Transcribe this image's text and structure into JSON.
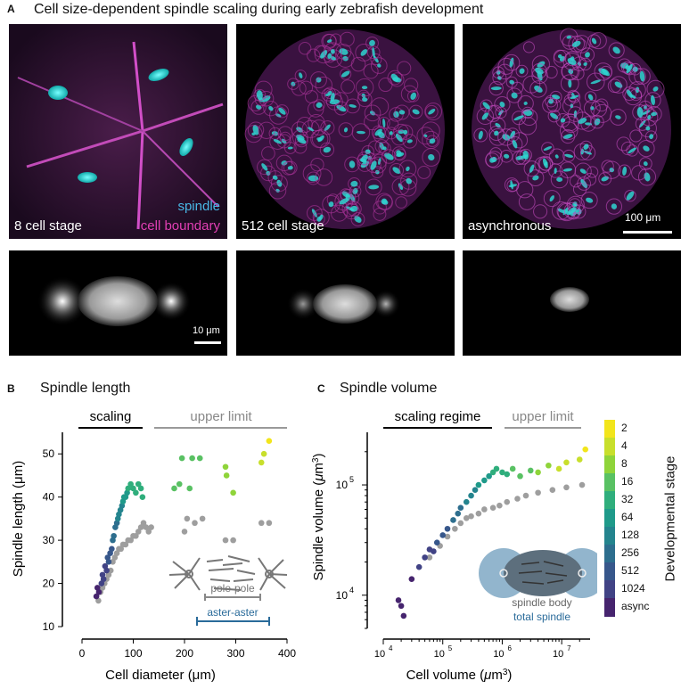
{
  "panelA": {
    "letter": "A",
    "title": "Cell size-dependent spindle scaling during early zebrafish development",
    "stage_labels": [
      "8 cell stage",
      "512 cell stage",
      "asynchronous"
    ],
    "legend_spindle": "spindle",
    "legend_boundary": "cell boundary",
    "scalebar_top": "100 μm",
    "scalebar_bottom": "10 μm"
  },
  "panelB": {
    "letter": "B",
    "title": "Spindle length",
    "regime_scaling": "scaling",
    "regime_upper": "upper limit",
    "inset_pole": "pole-pole",
    "inset_aster": "aster-aster"
  },
  "panelC": {
    "letter": "C",
    "title": "Spindle volume",
    "regime_scaling": "scaling regime",
    "regime_upper": "upper limit",
    "inset_body": "spindle body",
    "inset_total": "total spindle"
  },
  "colorbar": {
    "title": "Developmental stage",
    "labels": [
      "2",
      "4",
      "8",
      "16",
      "32",
      "64",
      "128",
      "256",
      "512",
      "1024",
      "async"
    ],
    "colors": [
      "#f2e51c",
      "#c8df2c",
      "#8fd43a",
      "#59c163",
      "#2fae7c",
      "#1f9a8a",
      "#24848e",
      "#2d6e8e",
      "#37578b",
      "#414385",
      "#46246e"
    ]
  },
  "chart_data": [
    {
      "type": "scatter",
      "title": "Spindle length",
      "xlabel": "Cell diameter (μm)",
      "ylabel": "Spindle length (μm)",
      "xlim": [
        0,
        400
      ],
      "ylim": [
        10,
        55
      ],
      "xticks": [
        0,
        100,
        200,
        300,
        400
      ],
      "yticks": [
        10,
        20,
        30,
        40,
        50
      ],
      "series": [
        {
          "name": "aster-aster",
          "color": "stage",
          "points": [
            [
              28,
              17,
              10
            ],
            [
              30,
              19,
              10
            ],
            [
              33,
              18,
              10
            ],
            [
              38,
              20,
              9
            ],
            [
              40,
              22,
              9
            ],
            [
              42,
              21,
              9
            ],
            [
              45,
              24,
              9
            ],
            [
              48,
              23,
              9
            ],
            [
              50,
              26,
              8
            ],
            [
              52,
              25,
              8
            ],
            [
              55,
              27,
              8
            ],
            [
              58,
              28,
              8
            ],
            [
              60,
              30,
              7
            ],
            [
              62,
              31,
              7
            ],
            [
              65,
              33,
              7
            ],
            [
              68,
              34,
              7
            ],
            [
              70,
              35,
              6
            ],
            [
              72,
              36,
              6
            ],
            [
              75,
              37,
              6
            ],
            [
              78,
              38,
              6
            ],
            [
              80,
              39,
              5
            ],
            [
              82,
              40,
              5
            ],
            [
              85,
              40,
              5
            ],
            [
              88,
              41,
              5
            ],
            [
              90,
              42,
              4
            ],
            [
              95,
              43,
              4
            ],
            [
              100,
              42,
              4
            ],
            [
              105,
              41,
              4
            ],
            [
              110,
              43,
              4
            ],
            [
              115,
              42,
              4
            ],
            [
              118,
              40,
              4
            ],
            [
              180,
              42,
              3
            ],
            [
              190,
              43,
              3
            ],
            [
              195,
              49,
              3
            ],
            [
              210,
              42,
              3
            ],
            [
              215,
              49,
              3
            ],
            [
              230,
              49,
              3
            ],
            [
              280,
              47,
              2
            ],
            [
              282,
              45,
              2
            ],
            [
              295,
              41,
              2
            ],
            [
              350,
              48,
              1
            ],
            [
              355,
              50,
              1
            ],
            [
              365,
              53,
              0
            ]
          ]
        },
        {
          "name": "pole-pole",
          "color": "#999999",
          "points": [
            [
              32,
              16
            ],
            [
              36,
              18
            ],
            [
              40,
              19
            ],
            [
              44,
              20
            ],
            [
              48,
              21
            ],
            [
              52,
              22
            ],
            [
              56,
              23
            ],
            [
              60,
              25
            ],
            [
              64,
              26
            ],
            [
              68,
              27
            ],
            [
              72,
              28
            ],
            [
              76,
              28
            ],
            [
              80,
              29
            ],
            [
              85,
              29
            ],
            [
              90,
              30
            ],
            [
              95,
              30
            ],
            [
              100,
              31
            ],
            [
              105,
              31
            ],
            [
              110,
              32
            ],
            [
              115,
              33
            ],
            [
              120,
              34
            ],
            [
              125,
              33
            ],
            [
              130,
              32
            ],
            [
              135,
              33
            ],
            [
              200,
              32
            ],
            [
              205,
              35
            ],
            [
              220,
              34
            ],
            [
              235,
              35
            ],
            [
              280,
              30
            ],
            [
              295,
              30
            ],
            [
              350,
              34
            ],
            [
              365,
              34
            ]
          ]
        }
      ]
    },
    {
      "type": "scatter",
      "title": "Spindle volume",
      "xlabel": "Cell volume (μm3)",
      "ylabel": "Spindle volume (μm3)",
      "xscale": "log",
      "yscale": "log",
      "xlim": [
        10000,
        30000000
      ],
      "ylim": [
        5000,
        300000
      ],
      "series": [
        {
          "name": "total spindle",
          "color": "stage",
          "points": [
            [
              18000,
              9000,
              10
            ],
            [
              20000,
              8000,
              10
            ],
            [
              22000,
              6500,
              10
            ],
            [
              30000,
              14000,
              10
            ],
            [
              40000,
              18000,
              9
            ],
            [
              50000,
              22000,
              9
            ],
            [
              60000,
              26000,
              9
            ],
            [
              70000,
              25000,
              9
            ],
            [
              80000,
              30000,
              8
            ],
            [
              100000,
              35000,
              8
            ],
            [
              120000,
              40000,
              8
            ],
            [
              150000,
              48000,
              7
            ],
            [
              180000,
              55000,
              7
            ],
            [
              200000,
              62000,
              7
            ],
            [
              250000,
              70000,
              6
            ],
            [
              300000,
              80000,
              6
            ],
            [
              350000,
              90000,
              6
            ],
            [
              400000,
              100000,
              5
            ],
            [
              500000,
              110000,
              5
            ],
            [
              600000,
              120000,
              5
            ],
            [
              700000,
              130000,
              4
            ],
            [
              800000,
              140000,
              4
            ],
            [
              1000000,
              130000,
              4
            ],
            [
              1200000,
              125000,
              4
            ],
            [
              1500000,
              140000,
              3
            ],
            [
              2000000,
              120000,
              3
            ],
            [
              3000000,
              135000,
              3
            ],
            [
              4000000,
              130000,
              2
            ],
            [
              6000000,
              150000,
              2
            ],
            [
              9000000,
              140000,
              1
            ],
            [
              12000000,
              160000,
              1
            ],
            [
              20000000,
              170000,
              1
            ],
            [
              25000000,
              210000,
              0
            ]
          ]
        },
        {
          "name": "spindle body",
          "color": "#999999",
          "points": [
            [
              60000,
              22000
            ],
            [
              90000,
              28000
            ],
            [
              120000,
              34000
            ],
            [
              160000,
              40000
            ],
            [
              200000,
              45000
            ],
            [
              250000,
              50000
            ],
            [
              300000,
              52000
            ],
            [
              400000,
              55000
            ],
            [
              500000,
              60000
            ],
            [
              700000,
              62000
            ],
            [
              900000,
              65000
            ],
            [
              1200000,
              70000
            ],
            [
              1800000,
              75000
            ],
            [
              2500000,
              80000
            ],
            [
              4000000,
              85000
            ],
            [
              7000000,
              90000
            ],
            [
              12000000,
              95000
            ],
            [
              22000000,
              100000
            ]
          ]
        }
      ]
    }
  ]
}
